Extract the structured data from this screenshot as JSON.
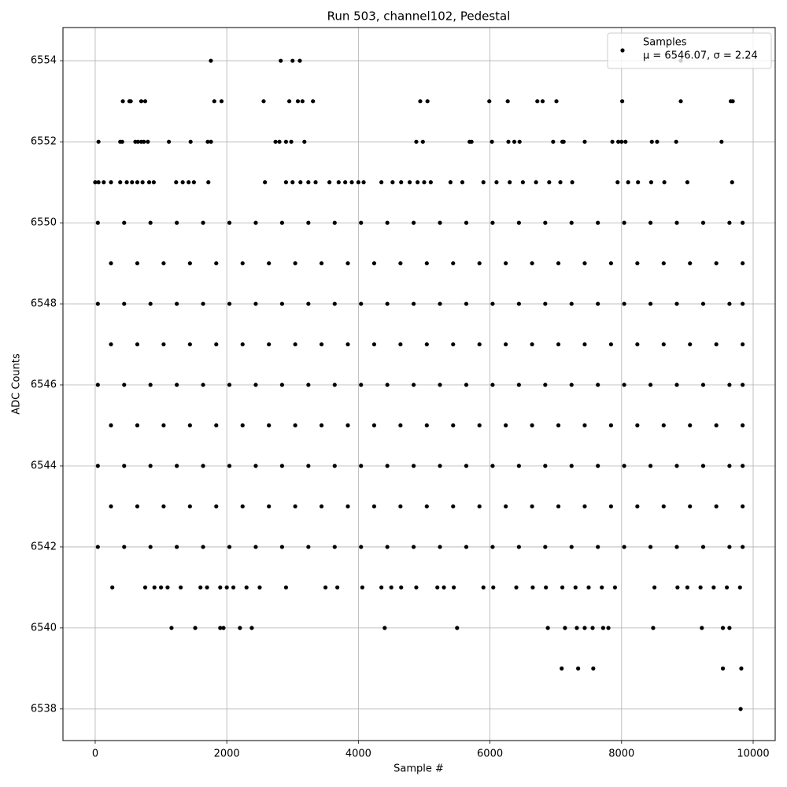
{
  "chart_data": {
    "type": "scatter",
    "title": "Run 503, channel102, Pedestal",
    "x_label": "Sample #",
    "y_label": "ADC Counts",
    "xlim": [
      -490,
      10335
    ],
    "ylim": [
      6537.22,
      6554.82
    ],
    "xticks": [
      0,
      2000,
      4000,
      6000,
      8000,
      10000
    ],
    "yticks": [
      6538,
      6540,
      6542,
      6544,
      6546,
      6548,
      6550,
      6552,
      6554
    ],
    "grid": true,
    "legend_position": "upper right",
    "legend_stats": "μ = 6546.07, σ = 2.24",
    "series": [
      {
        "name": "Samples",
        "color": "#000000",
        "x": [
          1758,
          2820,
          3000,
          3110,
          8900,
          420,
          520,
          540,
          700,
          760,
          1810,
          1920,
          2560,
          2950,
          3080,
          3150,
          3310,
          4940,
          5050,
          5990,
          6270,
          6720,
          6800,
          7010,
          8010,
          8900,
          9660,
          9690,
          50,
          380,
          410,
          610,
          650,
          700,
          740,
          800,
          1120,
          1450,
          1710,
          1760,
          2740,
          2800,
          2900,
          2980,
          3180,
          4880,
          4980,
          5690,
          5720,
          6030,
          6280,
          6370,
          6450,
          6960,
          7100,
          7120,
          7440,
          7860,
          7950,
          8000,
          8060,
          8460,
          8540,
          8830,
          9520,
          0,
          50,
          130,
          240,
          380,
          480,
          560,
          640,
          720,
          820,
          890,
          1230,
          1330,
          1420,
          1500,
          1720,
          2580,
          2900,
          3000,
          3120,
          3240,
          3350,
          3560,
          3700,
          3800,
          3900,
          4000,
          4080,
          4350,
          4520,
          4650,
          4780,
          4900,
          5000,
          5100,
          5400,
          5580,
          5900,
          6100,
          6300,
          6500,
          6700,
          6900,
          7070,
          7250,
          7940,
          8100,
          8250,
          8450,
          8650,
          9000,
          9680,
          40,
          440,
          840,
          1240,
          1640,
          2040,
          2440,
          2840,
          3240,
          3640,
          4040,
          4440,
          4840,
          5240,
          5640,
          6040,
          6440,
          6840,
          7240,
          7640,
          8040,
          8440,
          8840,
          9240,
          9640,
          9840,
          240,
          640,
          1040,
          1440,
          1840,
          2240,
          2640,
          3040,
          3440,
          3840,
          4240,
          4640,
          5040,
          5440,
          5840,
          6240,
          6640,
          7040,
          7440,
          7840,
          8240,
          8640,
          9040,
          9440,
          9840,
          40,
          440,
          840,
          1240,
          1640,
          2040,
          2440,
          2840,
          3240,
          3640,
          4040,
          4440,
          4840,
          5240,
          5640,
          6040,
          6440,
          6840,
          7240,
          7640,
          8040,
          8440,
          8840,
          9240,
          9640,
          9840,
          240,
          640,
          1040,
          1440,
          1840,
          2240,
          2640,
          3040,
          3440,
          3840,
          4240,
          4640,
          5040,
          5440,
          5840,
          6240,
          6640,
          7040,
          7440,
          7840,
          8240,
          8640,
          9040,
          9440,
          9840,
          40,
          440,
          840,
          1240,
          1640,
          2040,
          2440,
          2840,
          3240,
          3640,
          4040,
          4440,
          4840,
          5240,
          5640,
          6040,
          6440,
          6840,
          7240,
          7640,
          8040,
          8440,
          8840,
          9240,
          9640,
          9840,
          240,
          640,
          1040,
          1440,
          1840,
          2240,
          2640,
          3040,
          3440,
          3840,
          4240,
          4640,
          5040,
          5440,
          5840,
          6240,
          6640,
          7040,
          7440,
          7840,
          8240,
          8640,
          9040,
          9440,
          9840,
          40,
          440,
          840,
          1240,
          1640,
          2040,
          2440,
          2840,
          3240,
          3640,
          4040,
          4440,
          4840,
          5240,
          5640,
          6040,
          6440,
          6840,
          7240,
          7640,
          8040,
          8440,
          8840,
          9240,
          9640,
          9840,
          240,
          640,
          1040,
          1440,
          1840,
          2240,
          2640,
          3040,
          3440,
          3840,
          4240,
          4640,
          5040,
          5440,
          5840,
          6240,
          6640,
          7040,
          7440,
          7840,
          8240,
          8640,
          9040,
          9440,
          9840,
          40,
          440,
          840,
          1240,
          1640,
          2040,
          2440,
          2840,
          3240,
          3640,
          4040,
          4440,
          4840,
          5240,
          5640,
          6040,
          6440,
          6840,
          7240,
          7640,
          8040,
          8440,
          8840,
          9240,
          9640,
          9840,
          260,
          760,
          900,
          1000,
          1100,
          1300,
          1600,
          1700,
          1900,
          2000,
          2100,
          2300,
          2500,
          2900,
          3500,
          3680,
          4060,
          4350,
          4500,
          4650,
          4880,
          5200,
          5300,
          5450,
          5900,
          6050,
          6400,
          6650,
          6850,
          7100,
          7300,
          7500,
          7700,
          7900,
          8500,
          8850,
          9000,
          9200,
          9400,
          9600,
          9800,
          1160,
          1520,
          1900,
          1950,
          2200,
          2380,
          4400,
          5500,
          6880,
          7140,
          7320,
          7440,
          7560,
          7720,
          7800,
          8480,
          9220,
          9540,
          9640,
          7090,
          7340,
          7570,
          9540,
          9820,
          9810
        ],
        "values": [
          6554,
          6554,
          6554,
          6554,
          6554,
          6553,
          6553,
          6553,
          6553,
          6553,
          6553,
          6553,
          6553,
          6553,
          6553,
          6553,
          6553,
          6553,
          6553,
          6553,
          6553,
          6553,
          6553,
          6553,
          6553,
          6553,
          6553,
          6553,
          6552,
          6552,
          6552,
          6552,
          6552,
          6552,
          6552,
          6552,
          6552,
          6552,
          6552,
          6552,
          6552,
          6552,
          6552,
          6552,
          6552,
          6552,
          6552,
          6552,
          6552,
          6552,
          6552,
          6552,
          6552,
          6552,
          6552,
          6552,
          6552,
          6552,
          6552,
          6552,
          6552,
          6552,
          6552,
          6552,
          6552,
          6551,
          6551,
          6551,
          6551,
          6551,
          6551,
          6551,
          6551,
          6551,
          6551,
          6551,
          6551,
          6551,
          6551,
          6551,
          6551,
          6551,
          6551,
          6551,
          6551,
          6551,
          6551,
          6551,
          6551,
          6551,
          6551,
          6551,
          6551,
          6551,
          6551,
          6551,
          6551,
          6551,
          6551,
          6551,
          6551,
          6551,
          6551,
          6551,
          6551,
          6551,
          6551,
          6551,
          6551,
          6551,
          6551,
          6551,
          6551,
          6551,
          6551,
          6551,
          6551,
          6550,
          6550,
          6550,
          6550,
          6550,
          6550,
          6550,
          6550,
          6550,
          6550,
          6550,
          6550,
          6550,
          6550,
          6550,
          6550,
          6550,
          6550,
          6550,
          6550,
          6550,
          6550,
          6550,
          6550,
          6550,
          6550,
          6549,
          6549,
          6549,
          6549,
          6549,
          6549,
          6549,
          6549,
          6549,
          6549,
          6549,
          6549,
          6549,
          6549,
          6549,
          6549,
          6549,
          6549,
          6549,
          6549,
          6549,
          6549,
          6549,
          6549,
          6549,
          6548,
          6548,
          6548,
          6548,
          6548,
          6548,
          6548,
          6548,
          6548,
          6548,
          6548,
          6548,
          6548,
          6548,
          6548,
          6548,
          6548,
          6548,
          6548,
          6548,
          6548,
          6548,
          6548,
          6548,
          6548,
          6548,
          6547,
          6547,
          6547,
          6547,
          6547,
          6547,
          6547,
          6547,
          6547,
          6547,
          6547,
          6547,
          6547,
          6547,
          6547,
          6547,
          6547,
          6547,
          6547,
          6547,
          6547,
          6547,
          6547,
          6547,
          6547,
          6546,
          6546,
          6546,
          6546,
          6546,
          6546,
          6546,
          6546,
          6546,
          6546,
          6546,
          6546,
          6546,
          6546,
          6546,
          6546,
          6546,
          6546,
          6546,
          6546,
          6546,
          6546,
          6546,
          6546,
          6546,
          6546,
          6545,
          6545,
          6545,
          6545,
          6545,
          6545,
          6545,
          6545,
          6545,
          6545,
          6545,
          6545,
          6545,
          6545,
          6545,
          6545,
          6545,
          6545,
          6545,
          6545,
          6545,
          6545,
          6545,
          6545,
          6545,
          6544,
          6544,
          6544,
          6544,
          6544,
          6544,
          6544,
          6544,
          6544,
          6544,
          6544,
          6544,
          6544,
          6544,
          6544,
          6544,
          6544,
          6544,
          6544,
          6544,
          6544,
          6544,
          6544,
          6544,
          6544,
          6544,
          6543,
          6543,
          6543,
          6543,
          6543,
          6543,
          6543,
          6543,
          6543,
          6543,
          6543,
          6543,
          6543,
          6543,
          6543,
          6543,
          6543,
          6543,
          6543,
          6543,
          6543,
          6543,
          6543,
          6543,
          6543,
          6542,
          6542,
          6542,
          6542,
          6542,
          6542,
          6542,
          6542,
          6542,
          6542,
          6542,
          6542,
          6542,
          6542,
          6542,
          6542,
          6542,
          6542,
          6542,
          6542,
          6542,
          6542,
          6542,
          6542,
          6542,
          6542,
          6541,
          6541,
          6541,
          6541,
          6541,
          6541,
          6541,
          6541,
          6541,
          6541,
          6541,
          6541,
          6541,
          6541,
          6541,
          6541,
          6541,
          6541,
          6541,
          6541,
          6541,
          6541,
          6541,
          6541,
          6541,
          6541,
          6541,
          6541,
          6541,
          6541,
          6541,
          6541,
          6541,
          6541,
          6541,
          6541,
          6541,
          6541,
          6541,
          6541,
          6541,
          6540,
          6540,
          6540,
          6540,
          6540,
          6540,
          6540,
          6540,
          6540,
          6540,
          6540,
          6540,
          6540,
          6540,
          6540,
          6540,
          6540,
          6540,
          6540,
          6539,
          6539,
          6539,
          6539,
          6539,
          6538
        ]
      }
    ]
  }
}
